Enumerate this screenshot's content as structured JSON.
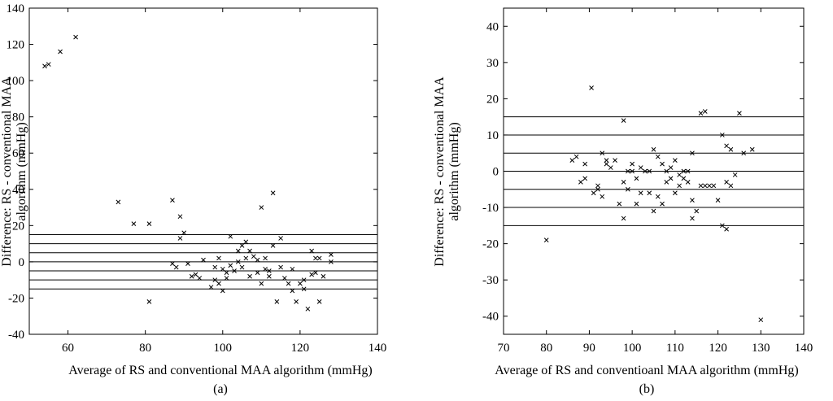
{
  "chart_data": [
    {
      "type": "scatter",
      "panel": "a",
      "caption": "(a)",
      "xlabel": "Average of RS and conventional MAA algorithm (mmHg)",
      "ylabel_line1": "Difference: RS - conventional MAA",
      "ylabel_line2": "algorithm (mmHg)",
      "xlim": [
        50,
        140
      ],
      "ylim": [
        -40,
        140
      ],
      "xticks": [
        60,
        80,
        100,
        120,
        140
      ],
      "yticks": [
        -40,
        -20,
        0,
        20,
        40,
        60,
        80,
        100,
        120,
        140
      ],
      "hlines": [
        15,
        10,
        5,
        0,
        -5,
        -10,
        -15
      ],
      "marker": "x",
      "points": [
        [
          54,
          108
        ],
        [
          55,
          109
        ],
        [
          58,
          116
        ],
        [
          62,
          124
        ],
        [
          73,
          33
        ],
        [
          77,
          21
        ],
        [
          81,
          21
        ],
        [
          81,
          -22
        ],
        [
          87,
          34
        ],
        [
          87,
          -1
        ],
        [
          88,
          -3
        ],
        [
          89,
          25
        ],
        [
          89,
          13
        ],
        [
          90,
          16
        ],
        [
          91,
          -1
        ],
        [
          92,
          -8
        ],
        [
          93,
          -7
        ],
        [
          94,
          -9
        ],
        [
          95,
          1
        ],
        [
          97,
          -14
        ],
        [
          98,
          -10
        ],
        [
          98,
          -3
        ],
        [
          99,
          2
        ],
        [
          99,
          -12
        ],
        [
          100,
          -16
        ],
        [
          100,
          -4
        ],
        [
          101,
          -9
        ],
        [
          101,
          -6
        ],
        [
          102,
          14
        ],
        [
          102,
          -2
        ],
        [
          103,
          -5
        ],
        [
          104,
          6
        ],
        [
          104,
          0
        ],
        [
          105,
          -3
        ],
        [
          105,
          9
        ],
        [
          106,
          11
        ],
        [
          106,
          2
        ],
        [
          107,
          6
        ],
        [
          107,
          -8
        ],
        [
          108,
          3
        ],
        [
          109,
          1
        ],
        [
          109,
          -6
        ],
        [
          110,
          30
        ],
        [
          110,
          -12
        ],
        [
          111,
          -4
        ],
        [
          111,
          2
        ],
        [
          112,
          -8
        ],
        [
          112,
          -5
        ],
        [
          113,
          38
        ],
        [
          113,
          9
        ],
        [
          114,
          -22
        ],
        [
          115,
          13
        ],
        [
          115,
          -3
        ],
        [
          116,
          -9
        ],
        [
          117,
          -12
        ],
        [
          118,
          -16
        ],
        [
          118,
          -4
        ],
        [
          119,
          -22
        ],
        [
          120,
          -12
        ],
        [
          121,
          -15
        ],
        [
          121,
          -10
        ],
        [
          122,
          -26
        ],
        [
          123,
          6
        ],
        [
          123,
          -7
        ],
        [
          124,
          -6
        ],
        [
          124,
          2
        ],
        [
          125,
          2
        ],
        [
          125,
          -22
        ],
        [
          126,
          -8
        ],
        [
          128,
          4
        ],
        [
          128,
          0
        ]
      ]
    },
    {
      "type": "scatter",
      "panel": "b",
      "caption": "(b)",
      "xlabel": "Average of RS and conventioanl MAA algorithm (mmHg)",
      "ylabel_line1": "Difference: RS - conventional MAA",
      "ylabel_line2": "algorithm (mmHg)",
      "xlim": [
        70,
        140
      ],
      "ylim": [
        -45,
        45
      ],
      "xticks": [
        70,
        80,
        90,
        100,
        110,
        120,
        130,
        140
      ],
      "yticks": [
        -40,
        -30,
        -20,
        -10,
        0,
        10,
        20,
        30,
        40
      ],
      "hlines": [
        15,
        10,
        5,
        0,
        -5,
        -10,
        -15
      ],
      "marker": "x",
      "points": [
        [
          80,
          -19
        ],
        [
          86,
          3
        ],
        [
          87,
          4
        ],
        [
          88,
          -3
        ],
        [
          89,
          -2
        ],
        [
          89,
          2
        ],
        [
          90.5,
          23
        ],
        [
          91,
          -6
        ],
        [
          92,
          -5
        ],
        [
          92,
          -4
        ],
        [
          93,
          5
        ],
        [
          93,
          -7
        ],
        [
          94,
          2
        ],
        [
          94,
          3
        ],
        [
          95,
          1
        ],
        [
          96,
          3
        ],
        [
          97,
          -9
        ],
        [
          98,
          14
        ],
        [
          98,
          -13
        ],
        [
          98,
          -3
        ],
        [
          99,
          0
        ],
        [
          99,
          -5
        ],
        [
          100,
          0
        ],
        [
          100,
          2
        ],
        [
          101,
          -2
        ],
        [
          101,
          -9
        ],
        [
          102,
          1
        ],
        [
          102,
          -6
        ],
        [
          103,
          0
        ],
        [
          104,
          -6
        ],
        [
          104,
          0
        ],
        [
          105,
          6
        ],
        [
          105,
          -11
        ],
        [
          106,
          4
        ],
        [
          106,
          -7
        ],
        [
          107,
          2
        ],
        [
          107,
          -9
        ],
        [
          108,
          0
        ],
        [
          108,
          -3
        ],
        [
          109,
          -2
        ],
        [
          109,
          1
        ],
        [
          110,
          3
        ],
        [
          110,
          -6
        ],
        [
          111,
          -1
        ],
        [
          111,
          -4
        ],
        [
          112,
          0
        ],
        [
          112,
          -2
        ],
        [
          113,
          -3
        ],
        [
          113,
          0
        ],
        [
          114,
          5
        ],
        [
          114,
          -8
        ],
        [
          114,
          -13
        ],
        [
          115,
          -11
        ],
        [
          116,
          -4
        ],
        [
          116,
          16
        ],
        [
          117,
          16.5
        ],
        [
          117,
          -4
        ],
        [
          118,
          -4
        ],
        [
          119,
          -4
        ],
        [
          120,
          -8
        ],
        [
          121,
          10
        ],
        [
          121,
          -15
        ],
        [
          122,
          7
        ],
        [
          122,
          -3
        ],
        [
          122,
          -16
        ],
        [
          123,
          6
        ],
        [
          123,
          -4
        ],
        [
          124,
          -1
        ],
        [
          125,
          16
        ],
        [
          126,
          5
        ],
        [
          128,
          6
        ],
        [
          130,
          -41
        ]
      ]
    }
  ]
}
